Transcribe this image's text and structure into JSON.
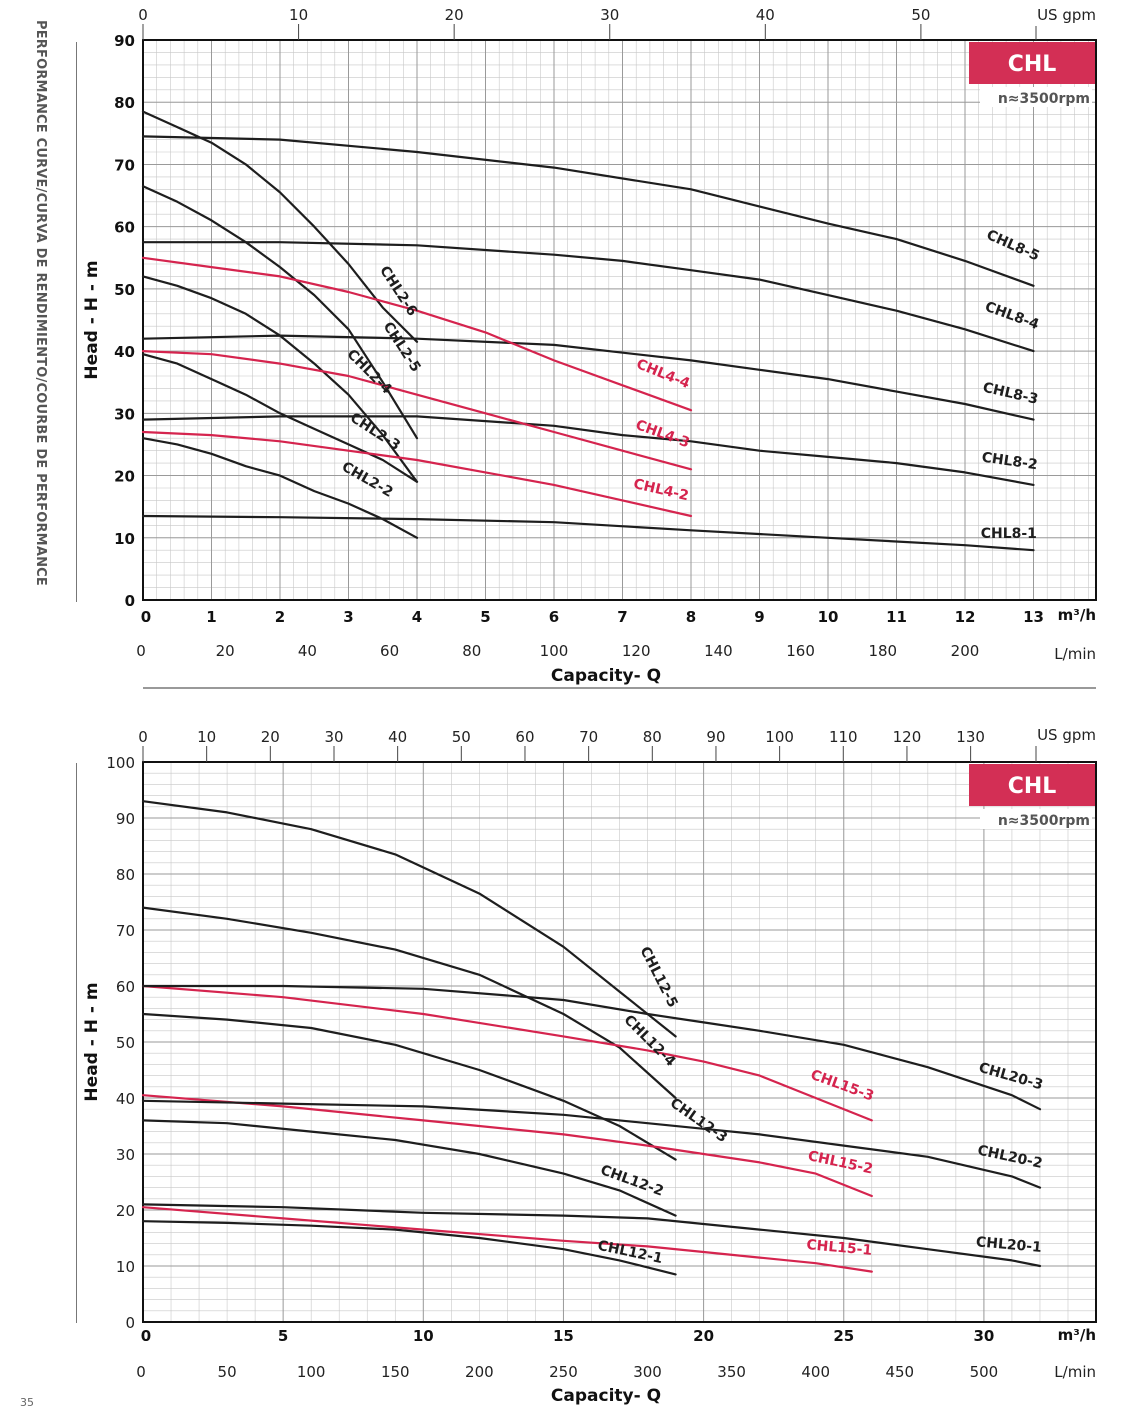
{
  "page": {
    "side_title": "PERFORMANCE CURVE/CURVA DE RENDIMIENTO/COURBE DE PERFORMANCE",
    "page_number": "35"
  },
  "colors": {
    "black_series": "#1e1e1e",
    "red_series": "#d5244e",
    "badge": "#d32f55",
    "grid": "#c8c8c8"
  },
  "chart_data": [
    {
      "type": "line",
      "badge": "CHL",
      "rpm_note": "n≈3500rpm",
      "ylabel": "Head - H - m",
      "xlabel": "Capacity- Q",
      "x_unit": "m³/h",
      "x_range": [
        0,
        14
      ],
      "y_range": [
        0,
        90
      ],
      "y_ticks": [
        "0",
        "10",
        "20",
        "30",
        "40",
        "50",
        "60",
        "70",
        "80",
        "90"
      ],
      "x_ticks": [
        "0",
        "1",
        "2",
        "3",
        "4",
        "5",
        "6",
        "7",
        "8",
        "9",
        "10",
        "11",
        "12",
        "13"
      ],
      "top_axis": {
        "unit": "US gpm",
        "ticks": [
          "0",
          "10",
          "20",
          "30",
          "40",
          "50"
        ],
        "values": [
          0,
          10,
          20,
          30,
          40,
          50
        ]
      },
      "bottom_axis2": {
        "unit": "L/min",
        "ticks": [
          "0",
          "20",
          "40",
          "60",
          "80",
          "100",
          "120",
          "140",
          "160",
          "180",
          "200"
        ],
        "values": [
          0,
          20,
          40,
          60,
          80,
          100,
          120,
          140,
          160,
          180,
          200
        ]
      },
      "series": [
        {
          "name": "CHL8-5",
          "color": "black",
          "x": [
            0,
            2,
            4,
            6,
            8,
            10,
            11,
            12,
            13
          ],
          "y": [
            74.5,
            74,
            72,
            69.5,
            66,
            60.5,
            58,
            54.5,
            50.5
          ]
        },
        {
          "name": "CHL8-4",
          "color": "black",
          "x": [
            0,
            2,
            4,
            6,
            7,
            8,
            9,
            10,
            11,
            12,
            13
          ],
          "y": [
            57.5,
            57.5,
            57,
            55.5,
            54.5,
            53,
            51.5,
            49,
            46.5,
            43.5,
            40
          ]
        },
        {
          "name": "CHL8-3",
          "color": "black",
          "x": [
            0,
            2,
            4,
            6,
            8,
            9,
            10,
            11,
            12,
            13
          ],
          "y": [
            42,
            42.5,
            42,
            41,
            38.5,
            37,
            35.5,
            33.5,
            31.5,
            29
          ]
        },
        {
          "name": "CHL8-2",
          "color": "black",
          "x": [
            0,
            2,
            4,
            6,
            7,
            8,
            9,
            10,
            11,
            12,
            13
          ],
          "y": [
            29,
            29.5,
            29.5,
            28,
            26.5,
            25.5,
            24,
            23,
            22,
            20.5,
            18.5
          ]
        },
        {
          "name": "CHL8-1",
          "color": "black",
          "x": [
            0,
            2,
            4,
            6,
            8,
            10,
            12,
            13
          ],
          "y": [
            13.5,
            13.3,
            13,
            12.5,
            11.2,
            10,
            8.8,
            8
          ]
        },
        {
          "name": "CHL2-6",
          "color": "black",
          "x": [
            0,
            0.5,
            1,
            1.5,
            2,
            2.5,
            3,
            3.5,
            4
          ],
          "y": [
            78.5,
            76,
            73.5,
            70,
            65.5,
            60,
            54,
            47,
            41.5
          ]
        },
        {
          "name": "CHL2-5",
          "color": "black",
          "x": [
            0,
            0.5,
            1,
            1.5,
            2,
            2.5,
            3,
            3.5,
            4
          ],
          "y": [
            66.5,
            64,
            61,
            57.5,
            53.5,
            49,
            43.5,
            35,
            26
          ]
        },
        {
          "name": "CHL2-4",
          "color": "black",
          "x": [
            0,
            0.5,
            1,
            1.5,
            2,
            2.5,
            3,
            3.5,
            4
          ],
          "y": [
            52,
            50.5,
            48.5,
            46,
            42.5,
            38,
            33,
            26.5,
            19
          ]
        },
        {
          "name": "CHL2-3",
          "color": "black",
          "x": [
            0,
            0.5,
            1,
            1.5,
            2,
            2.5,
            3,
            3.5,
            4
          ],
          "y": [
            39.5,
            38,
            35.5,
            33,
            30,
            27.5,
            25,
            22.5,
            19
          ]
        },
        {
          "name": "CHL2-2",
          "color": "black",
          "x": [
            0,
            0.5,
            1,
            1.5,
            2,
            2.5,
            3,
            3.5,
            4
          ],
          "y": [
            26,
            25,
            23.5,
            21.5,
            20,
            17.5,
            15.5,
            13,
            10
          ]
        },
        {
          "name": "CHL4-4",
          "color": "red",
          "x": [
            0,
            1,
            2,
            3,
            4,
            5,
            6,
            7,
            8
          ],
          "y": [
            55,
            53.5,
            52,
            49.5,
            46.5,
            43,
            38.5,
            34.5,
            30.5
          ]
        },
        {
          "name": "CHL4-3",
          "color": "red",
          "x": [
            0,
            1,
            2,
            3,
            4,
            5,
            6,
            7,
            8
          ],
          "y": [
            40,
            39.5,
            38,
            36,
            33,
            30,
            27,
            24,
            21
          ]
        },
        {
          "name": "CHL4-2",
          "color": "red",
          "x": [
            0,
            1,
            2,
            3,
            4,
            5,
            6,
            7,
            8
          ],
          "y": [
            27,
            26.5,
            25.5,
            24,
            22.5,
            20.5,
            18.5,
            16,
            13.5
          ]
        }
      ],
      "labels": [
        {
          "series": "CHL8-5",
          "x": 13.05,
          "y": 54.5,
          "angle": 24
        },
        {
          "series": "CHL8-4",
          "x": 13.05,
          "y": 43.5,
          "angle": 20
        },
        {
          "series": "CHL8-3",
          "x": 13.05,
          "y": 31.5,
          "angle": 13
        },
        {
          "series": "CHL8-2",
          "x": 13.05,
          "y": 21,
          "angle": 8
        },
        {
          "series": "CHL8-1",
          "x": 13.05,
          "y": 10,
          "angle": 0
        },
        {
          "series": "CHL2-6",
          "x": 3.9,
          "y": 45.5,
          "angle": 57
        },
        {
          "series": "CHL2-5",
          "x": 3.95,
          "y": 36.5,
          "angle": 57
        },
        {
          "series": "CHL2-4",
          "x": 3.55,
          "y": 33,
          "angle": 45
        },
        {
          "series": "CHL2-3",
          "x": 3.7,
          "y": 24,
          "angle": 33
        },
        {
          "series": "CHL2-2",
          "x": 3.6,
          "y": 16.5,
          "angle": 30
        },
        {
          "series": "CHL4-4",
          "x": 7.95,
          "y": 34,
          "angle": 22
        },
        {
          "series": "CHL4-3",
          "x": 7.95,
          "y": 24.5,
          "angle": 20
        },
        {
          "series": "CHL4-2",
          "x": 7.95,
          "y": 16,
          "angle": 13
        }
      ]
    },
    {
      "type": "line",
      "badge": "CHL",
      "rpm_note": "n≈3500rpm",
      "ylabel": "Head - H - m",
      "xlabel": "Capacity- Q",
      "x_unit": "m³/h",
      "x_range": [
        0,
        34
      ],
      "y_range": [
        0,
        100
      ],
      "y_ticks": [
        "0",
        "10",
        "20",
        "30",
        "40",
        "50",
        "60",
        "70",
        "80",
        "90",
        "100"
      ],
      "x_ticks": [
        "0",
        "5",
        "10",
        "15",
        "20",
        "25",
        "30"
      ],
      "x_tick_values": [
        0,
        5,
        10,
        15,
        20,
        25,
        30
      ],
      "top_axis": {
        "unit": "US gpm",
        "ticks": [
          "0",
          "10",
          "20",
          "30",
          "40",
          "50",
          "60",
          "70",
          "80",
          "90",
          "100",
          "110",
          "120",
          "130"
        ],
        "values": [
          0,
          10,
          20,
          30,
          40,
          50,
          60,
          70,
          80,
          90,
          100,
          110,
          120,
          130
        ]
      },
      "bottom_axis2": {
        "unit": "L/min",
        "ticks": [
          "0",
          "50",
          "100",
          "150",
          "200",
          "250",
          "300",
          "350",
          "400",
          "450",
          "500"
        ],
        "values": [
          0,
          50,
          100,
          150,
          200,
          250,
          300,
          350,
          400,
          450,
          500
        ]
      },
      "series": [
        {
          "name": "CHL12-5",
          "color": "black",
          "x": [
            0,
            3,
            6,
            9,
            12,
            15,
            17,
            19
          ],
          "y": [
            93,
            91,
            88,
            83.5,
            76.5,
            67,
            59,
            51
          ]
        },
        {
          "name": "CHL12-4",
          "color": "black",
          "x": [
            0,
            3,
            6,
            9,
            12,
            15,
            17,
            19
          ],
          "y": [
            74,
            72,
            69.5,
            66.5,
            62,
            55,
            49,
            40
          ]
        },
        {
          "name": "CHL12-3",
          "color": "black",
          "x": [
            0,
            3,
            6,
            9,
            12,
            15,
            17,
            19
          ],
          "y": [
            55,
            54,
            52.5,
            49.5,
            45,
            39.5,
            35,
            29
          ]
        },
        {
          "name": "CHL12-2",
          "color": "black",
          "x": [
            0,
            3,
            6,
            9,
            12,
            15,
            17,
            19
          ],
          "y": [
            36,
            35.5,
            34,
            32.5,
            30,
            26.5,
            23.5,
            19
          ]
        },
        {
          "name": "CHL12-1",
          "color": "black",
          "x": [
            0,
            3,
            6,
            9,
            12,
            15,
            17,
            19
          ],
          "y": [
            18,
            17.7,
            17.2,
            16.5,
            15,
            13,
            11,
            8.5
          ]
        },
        {
          "name": "CHL15-3",
          "color": "red",
          "x": [
            0,
            5,
            10,
            15,
            18,
            20,
            22,
            24,
            26
          ],
          "y": [
            60,
            58,
            55,
            51,
            48.5,
            46.5,
            44,
            40,
            36
          ]
        },
        {
          "name": "CHL15-2",
          "color": "red",
          "x": [
            0,
            5,
            10,
            15,
            18,
            20,
            22,
            24,
            26
          ],
          "y": [
            40.5,
            38.5,
            36,
            33.5,
            31.5,
            30,
            28.5,
            26.5,
            22.5
          ]
        },
        {
          "name": "CHL15-1",
          "color": "red",
          "x": [
            0,
            5,
            10,
            15,
            18,
            20,
            22,
            24,
            26
          ],
          "y": [
            20.5,
            18.5,
            16.5,
            14.5,
            13.5,
            12.5,
            11.5,
            10.5,
            9
          ]
        },
        {
          "name": "CHL20-3",
          "color": "black",
          "x": [
            0,
            5,
            10,
            15,
            18,
            20,
            22,
            25,
            28,
            31,
            32
          ],
          "y": [
            60,
            60,
            59.5,
            57.5,
            55,
            53.5,
            52,
            49.5,
            45.5,
            40.5,
            38
          ]
        },
        {
          "name": "CHL20-2",
          "color": "black",
          "x": [
            0,
            5,
            10,
            15,
            18,
            20,
            22,
            25,
            28,
            31,
            32
          ],
          "y": [
            39.5,
            39,
            38.5,
            37,
            35.5,
            34.5,
            33.5,
            31.5,
            29.5,
            26,
            24
          ]
        },
        {
          "name": "CHL20-1",
          "color": "black",
          "x": [
            0,
            5,
            10,
            15,
            18,
            20,
            22,
            25,
            28,
            31,
            32
          ],
          "y": [
            21,
            20.5,
            19.5,
            19,
            18.5,
            17.5,
            16.5,
            15,
            13,
            11,
            10
          ]
        }
      ],
      "labels": [
        {
          "series": "CHL12-5",
          "x": 18.8,
          "y": 56,
          "angle": 63
        },
        {
          "series": "CHL12-4",
          "x": 18.8,
          "y": 45.5,
          "angle": 45
        },
        {
          "series": "CHL12-3",
          "x": 20.7,
          "y": 32,
          "angle": 35
        },
        {
          "series": "CHL12-2",
          "x": 18.5,
          "y": 22.5,
          "angle": 20
        },
        {
          "series": "CHL12-1",
          "x": 18.5,
          "y": 10.5,
          "angle": 12
        },
        {
          "series": "CHL15-3",
          "x": 26,
          "y": 39.5,
          "angle": 20
        },
        {
          "series": "CHL15-2",
          "x": 26,
          "y": 26.5,
          "angle": 12
        },
        {
          "series": "CHL15-1",
          "x": 26,
          "y": 12,
          "angle": 5
        },
        {
          "series": "CHL20-3",
          "x": 32.05,
          "y": 41.5,
          "angle": 16
        },
        {
          "series": "CHL20-2",
          "x": 32.05,
          "y": 27.5,
          "angle": 12
        },
        {
          "series": "CHL20-1",
          "x": 32.05,
          "y": 12.5,
          "angle": 5
        }
      ]
    }
  ]
}
